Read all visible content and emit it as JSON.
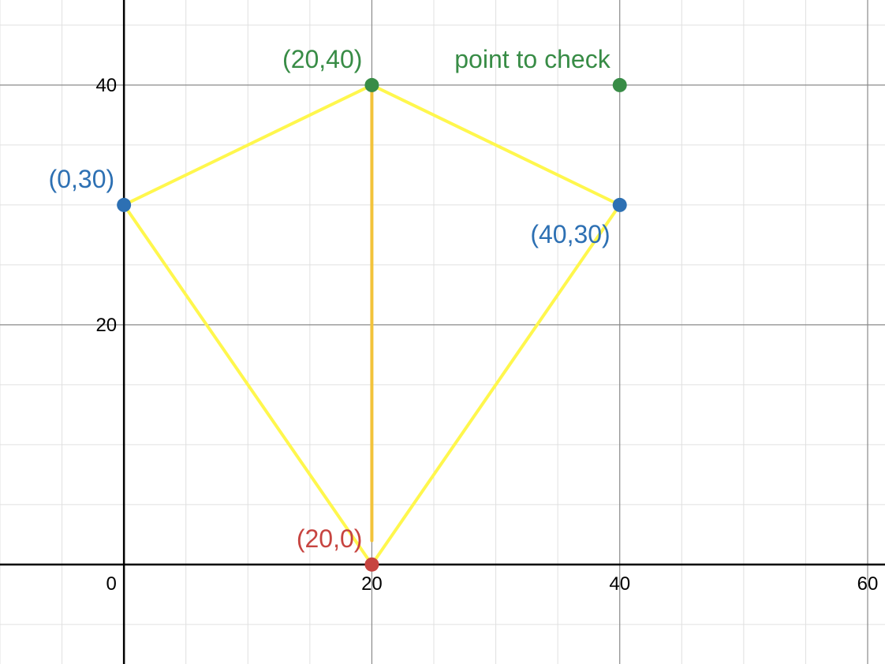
{
  "chart_data": {
    "type": "scatter",
    "title": "",
    "xlabel": "",
    "ylabel": "",
    "xlim": [
      -10,
      61.4
    ],
    "ylim": [
      -8.3,
      47.1
    ],
    "grid": true,
    "major_step": 20,
    "minor_step": 5,
    "x_ticks": [
      "0",
      "20",
      "40",
      "60"
    ],
    "y_ticks": [
      "20",
      "40"
    ],
    "points": [
      {
        "x": 20,
        "y": 40,
        "label": "(20,40)",
        "color": "#388c46"
      },
      {
        "x": 0,
        "y": 30,
        "label": "(0,30)",
        "color": "#2d70b3"
      },
      {
        "x": 40,
        "y": 30,
        "label": "(40,30)",
        "color": "#2d70b3"
      },
      {
        "x": 20,
        "y": 0,
        "label": "(20,0)",
        "color": "#c74440"
      },
      {
        "x": 40,
        "y": 40,
        "label": "point to check",
        "color": "#388c46"
      }
    ],
    "polygon": {
      "vertices": [
        [
          20,
          40
        ],
        [
          40,
          30
        ],
        [
          20,
          0
        ],
        [
          0,
          30
        ]
      ],
      "color": "#fff74d"
    },
    "segments": [
      {
        "from": [
          20,
          40
        ],
        "to": [
          20,
          2
        ],
        "color": "#f2c33a"
      }
    ]
  }
}
